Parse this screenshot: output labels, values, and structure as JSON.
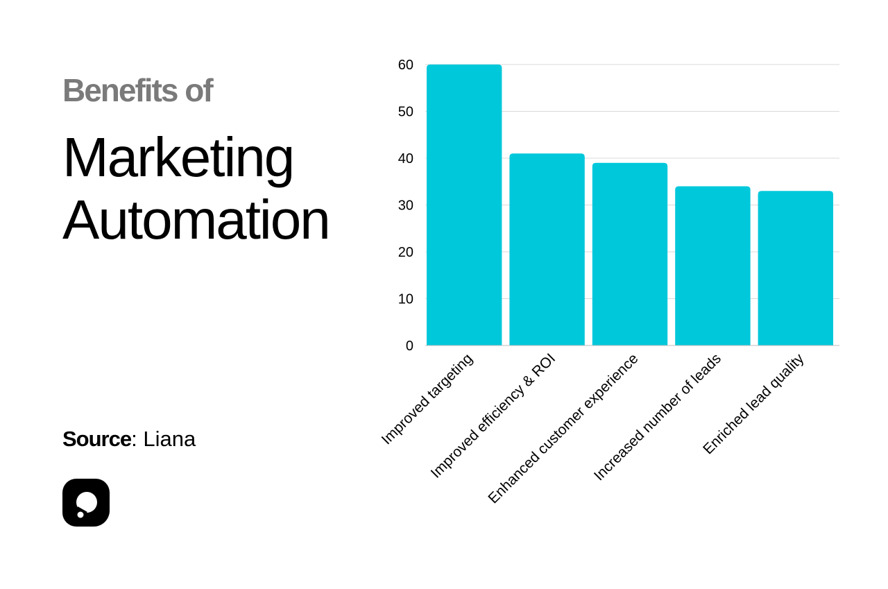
{
  "header": {
    "subtitle": "Benefits of",
    "title_line1": "Marketing",
    "title_line2": "Automation"
  },
  "source": {
    "label": "Source",
    "value": ": Liana"
  },
  "logo": {
    "icon": "brand-logo-icon",
    "color": "#000000"
  },
  "chart_data": {
    "type": "bar",
    "categories": [
      "Improved targeting",
      "Improved efficiency & ROI",
      "Enhanced customer experience",
      "Increased number of leads",
      "Enriched lead quality"
    ],
    "values": [
      60,
      41,
      39,
      34,
      33
    ],
    "ylim": [
      0,
      60
    ],
    "yticks": [
      0,
      10,
      20,
      30,
      40,
      50,
      60
    ],
    "title": "",
    "xlabel": "",
    "ylabel": "",
    "bar_color": "#00c8db",
    "grid": true,
    "grid_color": "#d9d9d9",
    "legend": "none"
  }
}
